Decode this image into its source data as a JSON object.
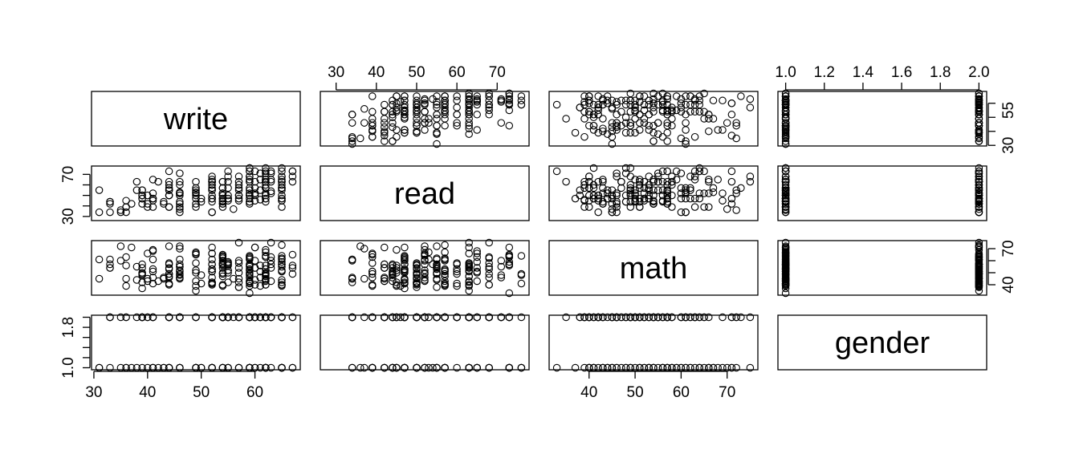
{
  "chart_data": {
    "type": "scatter",
    "title": "",
    "variables": [
      "write",
      "read",
      "math",
      "gender"
    ],
    "ranges": {
      "write": [
        31,
        67
      ],
      "read": [
        28,
        76
      ],
      "math": [
        33,
        75
      ],
      "gender": [
        1,
        2
      ]
    },
    "ticks": {
      "write": [
        30,
        40,
        50,
        60
      ],
      "read": [
        30,
        40,
        50,
        60,
        70
      ],
      "math": [
        40,
        50,
        60,
        70
      ],
      "gender": [
        1.0,
        1.2,
        1.4,
        1.6,
        1.8,
        2.0
      ]
    },
    "tick_labels": {
      "write_bottom": [
        "30",
        "40",
        "50",
        "60"
      ],
      "read_top": [
        "30",
        "40",
        "50",
        "60",
        "70"
      ],
      "math_bottom": [
        "40",
        "50",
        "60",
        "70"
      ],
      "gender_top": [
        "1.0",
        "1.2",
        "1.4",
        "1.6",
        "1.8",
        "2.0"
      ],
      "write_right": [
        "30",
        "55"
      ],
      "read_left": [
        "30",
        "70"
      ],
      "math_right": [
        "40",
        "70"
      ],
      "gender_left": [
        "1.0",
        "1.8"
      ]
    },
    "observations": {
      "write": [
        52,
        59,
        33,
        44,
        52,
        52,
        59,
        46,
        57,
        55,
        46,
        65,
        60,
        63,
        57,
        49,
        52,
        57,
        65,
        39,
        49,
        63,
        40,
        52,
        56,
        52,
        52,
        65,
        59,
        46,
        54,
        65,
        62,
        59,
        54,
        57,
        57,
        41,
        65,
        54,
        50,
        65,
        54,
        40,
        59,
        63,
        65,
        46,
        59,
        65,
        31,
        57,
        41,
        62,
        65,
        62,
        57,
        54,
        46,
        46,
        36,
        33,
        61,
        52,
        59,
        54,
        60,
        54,
        55,
        54,
        46,
        49,
        52,
        54,
        59,
        59,
        63,
        61,
        46,
        67,
        44,
        33,
        60,
        62,
        62,
        54,
        65,
        49,
        52,
        52,
        49,
        44,
        49,
        55,
        61,
        65,
        44,
        37,
        65,
        41,
        62,
        59,
        44,
        54,
        62,
        52,
        62,
        44,
        44,
        62,
        65,
        44,
        33,
        44,
        46,
        39,
        46,
        54,
        59,
        60,
        62,
        41,
        52,
        49,
        62,
        62,
        31,
        60,
        36,
        41,
        44,
        46,
        55,
        62,
        62,
        54,
        39,
        59,
        59,
        62,
        42,
        49,
        65,
        50,
        54,
        63,
        44,
        59,
        43,
        60,
        62,
        46,
        62,
        39,
        54,
        59,
        39,
        52,
        39,
        49,
        44,
        55,
        41,
        35,
        39,
        65,
        41,
        36,
        54,
        61,
        43,
        59,
        55,
        59,
        38,
        67,
        36,
        60,
        57,
        35,
        67,
        46,
        65,
        65,
        40,
        54,
        38,
        65,
        67,
        52,
        59,
        52,
        62,
        52,
        63,
        59,
        57,
        55,
        55,
        54
      ],
      "read": [
        57,
        68,
        44,
        63,
        47,
        44,
        50,
        34,
        63,
        57,
        60,
        57,
        73,
        54,
        45,
        42,
        47,
        57,
        68,
        55,
        63,
        63,
        50,
        60,
        37,
        34,
        65,
        47,
        44,
        52,
        42,
        76,
        65,
        42,
        52,
        60,
        68,
        65,
        47,
        39,
        47,
        55,
        52,
        42,
        76,
        73,
        60,
        37,
        68,
        65,
        34,
        50,
        47,
        60,
        57,
        47,
        50,
        45,
        63,
        52,
        34,
        34,
        46,
        50,
        65,
        50,
        52,
        57,
        73,
        50,
        39,
        50,
        47,
        63,
        68,
        57,
        65,
        55,
        42,
        63,
        73,
        42,
        63,
        71,
        57,
        47,
        39,
        57,
        68,
        55,
        52,
        55,
        39,
        47,
        71,
        57,
        55,
        42,
        63,
        45,
        73,
        50,
        39,
        42,
        57,
        63,
        57,
        57,
        50,
        52,
        63,
        50,
        44,
        39,
        50,
        47,
        71,
        57,
        73,
        57,
        44,
        52,
        60,
        47,
        50,
        63,
        55,
        45,
        45,
        47,
        55,
        52,
        50,
        63,
        57,
        47,
        42,
        55,
        73,
        76,
        63,
        55,
        45,
        44,
        63,
        52,
        60,
        44,
        44,
        52,
        65,
        53,
        68,
        55,
        44,
        52,
        50,
        63,
        47,
        53,
        50,
        47,
        39,
        36,
        50,
        45,
        47,
        39,
        47,
        65,
        42,
        63,
        45,
        47,
        55,
        73,
        39,
        50,
        47,
        34,
        68,
        44,
        73,
        68,
        39,
        52,
        63,
        50,
        73,
        55,
        76,
        63,
        47,
        34,
        71,
        63,
        55,
        63,
        68,
        52
      ],
      "math": [
        41,
        53,
        54,
        47,
        57,
        51,
        42,
        45,
        54,
        52,
        51,
        51,
        71,
        57,
        50,
        43,
        51,
        60,
        62,
        57,
        35,
        75,
        45,
        57,
        45,
        46,
        66,
        57,
        49,
        49,
        57,
        64,
        63,
        57,
        50,
        58,
        75,
        68,
        44,
        40,
        41,
        62,
        57,
        43,
        48,
        63,
        39,
        70,
        63,
        59,
        61,
        38,
        61,
        49,
        73,
        44,
        42,
        39,
        55,
        52,
        45,
        61,
        39,
        41,
        50,
        40,
        60,
        47,
        59,
        49,
        46,
        58,
        71,
        58,
        46,
        43,
        54,
        56,
        46,
        54,
        57,
        54,
        71,
        48,
        40,
        64,
        51,
        39,
        40,
        61,
        66,
        49,
        65,
        52,
        46,
        61,
        72,
        71,
        40,
        69,
        64,
        56,
        49,
        54,
        53,
        66,
        67,
        40,
        46,
        69,
        40,
        41,
        57,
        58,
        57,
        37,
        55,
        62,
        64,
        40,
        50,
        46,
        53,
        52,
        45,
        56,
        45,
        54,
        56,
        41,
        54,
        72,
        56,
        47,
        49,
        60,
        54,
        55,
        33,
        49,
        43,
        50,
        52,
        48,
        58,
        43,
        41,
        43,
        46,
        44,
        43,
        61,
        40,
        49,
        56,
        61,
        50,
        51,
        42,
        67,
        53,
        50,
        51,
        72,
        48,
        40,
        53,
        39,
        63,
        51,
        45,
        39,
        42,
        62,
        44,
        65,
        63,
        54,
        45,
        60,
        49,
        48,
        57,
        55,
        66,
        64,
        55,
        42,
        56,
        53,
        41,
        42,
        53,
        42,
        60,
        52,
        38,
        57,
        58,
        65
      ],
      "gender": [
        1,
        2,
        1,
        2,
        2,
        1,
        1,
        2,
        1,
        2,
        1,
        2,
        2,
        1,
        2,
        1,
        2,
        1,
        2,
        2,
        2,
        2,
        2,
        2,
        2,
        1,
        1,
        2,
        2,
        2,
        2,
        1,
        2,
        2,
        2,
        2,
        1,
        1,
        1,
        2,
        1,
        1,
        1,
        2,
        2,
        2,
        2,
        1,
        2,
        1,
        1,
        2,
        2,
        2,
        2,
        1,
        2,
        2,
        2,
        2,
        2,
        2,
        2,
        2,
        2,
        2,
        2,
        1,
        1,
        2,
        2,
        1,
        1,
        2,
        2,
        2,
        2,
        1,
        2,
        1,
        2,
        2,
        2,
        2,
        1,
        2,
        2,
        2,
        2,
        2,
        1,
        1,
        1,
        2,
        2,
        2,
        2,
        1,
        1,
        1,
        1,
        1,
        1,
        1,
        1,
        2,
        1,
        2,
        2,
        2,
        2,
        1,
        2,
        1,
        1,
        1,
        2,
        2,
        1,
        1,
        2,
        2,
        2,
        2,
        1,
        2,
        1,
        2,
        1,
        2,
        2,
        2,
        2,
        2,
        2,
        1,
        2,
        2,
        1,
        1,
        1,
        2,
        1,
        1,
        2,
        2,
        2,
        2,
        1,
        1,
        1,
        2,
        1,
        2,
        2,
        1,
        2,
        2,
        2,
        1,
        1,
        1,
        1,
        1,
        2,
        1,
        2,
        2,
        2,
        2,
        1,
        1,
        2,
        1,
        2,
        2,
        1,
        2,
        2,
        2,
        2,
        1,
        1,
        2,
        1,
        2,
        1,
        2,
        1,
        1,
        1,
        2,
        1,
        2,
        2,
        1,
        2,
        2,
        1,
        2
      ]
    }
  }
}
